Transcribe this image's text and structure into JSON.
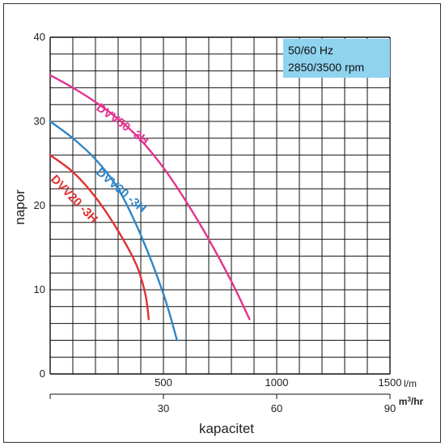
{
  "chart_data": {
    "type": "line",
    "xlabel": "kapacitet",
    "ylabel": "napor",
    "x_unit_primary": "l/m",
    "x_unit_secondary": "m³/hr",
    "x_unit_secondary_base": "m",
    "x_unit_secondary_sup": "3",
    "x_unit_secondary_tail": "/hr",
    "xlim": [
      0,
      1500
    ],
    "ylim": [
      0,
      40
    ],
    "x_ticks_primary": [
      {
        "value": 500,
        "label": "500"
      },
      {
        "value": 1000,
        "label": "1000"
      },
      {
        "value": 1500,
        "label": "1500"
      }
    ],
    "x_ticks_secondary": [
      {
        "value": 30,
        "label": "30"
      },
      {
        "value": 60,
        "label": "60"
      },
      {
        "value": 90,
        "label": "90"
      }
    ],
    "y_ticks": [
      {
        "value": 0,
        "label": "0"
      },
      {
        "value": 10,
        "label": "10"
      },
      {
        "value": 20,
        "label": "20"
      },
      {
        "value": 30,
        "label": "30"
      },
      {
        "value": 40,
        "label": "40"
      }
    ],
    "grid": true,
    "annotation_box": {
      "lines": [
        "50/60 Hz",
        "2850/3500 rpm"
      ],
      "color": "#8fd3ef",
      "placement": "top-right"
    },
    "series": [
      {
        "name": "DVV20 -3H",
        "color": "#e03030",
        "x": [
          0,
          100,
          200,
          300,
          380,
          420,
          435
        ],
        "y": [
          26,
          24,
          21,
          17,
          13,
          9.5,
          6.5
        ]
      },
      {
        "name": "DVV30 -3H",
        "color": "#2f86c8",
        "x": [
          0,
          100,
          200,
          300,
          400,
          500,
          560
        ],
        "y": [
          30,
          28,
          25.5,
          22,
          16.5,
          9.5,
          4
        ]
      },
      {
        "name": "DVV50 -3H",
        "color": "#e3338f",
        "x": [
          0,
          100,
          200,
          300,
          400,
          500,
          600,
          700,
          800,
          880
        ],
        "y": [
          35.5,
          34,
          32.3,
          30.3,
          27.8,
          24.5,
          20.5,
          16,
          11,
          6.5
        ]
      }
    ]
  }
}
